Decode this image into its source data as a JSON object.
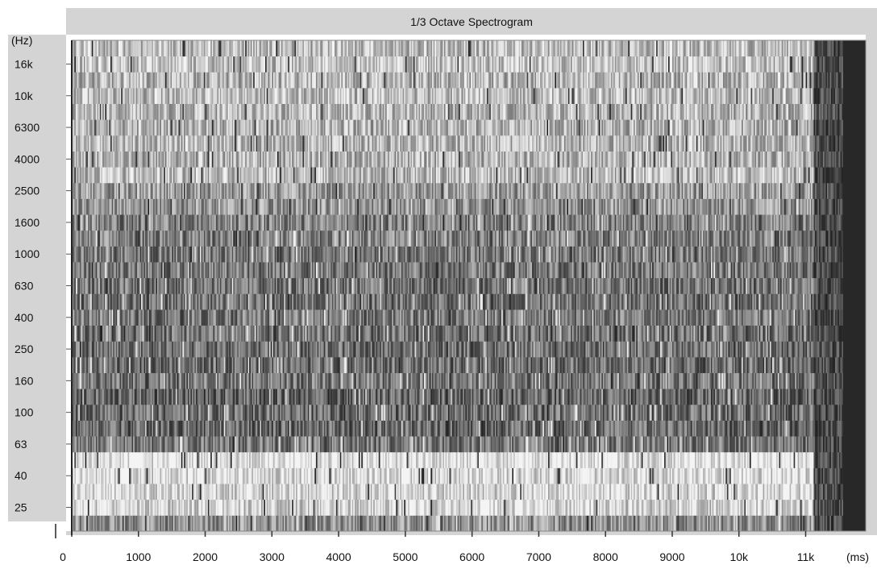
{
  "chart_data": {
    "type": "heatmap",
    "title": "1/3 Octave Spectrogram",
    "y_unit_label": "(Hz)",
    "x_unit_label": "(ms)",
    "y_axis": {
      "bands": [
        20,
        25,
        31.5,
        40,
        50,
        63,
        80,
        100,
        125,
        160,
        200,
        250,
        315,
        400,
        500,
        630,
        800,
        1000,
        1250,
        1600,
        2000,
        2500,
        3150,
        4000,
        5000,
        6300,
        8000,
        10000,
        12500,
        16000,
        20000
      ],
      "tick_labels": [
        "16k",
        "10k",
        "6300",
        "4000",
        "2500",
        "1600",
        "1000",
        "630",
        "400",
        "250",
        "160",
        "100",
        "63",
        "40",
        "25"
      ],
      "tick_values": [
        16000,
        10000,
        6300,
        4000,
        2500,
        1600,
        1000,
        630,
        400,
        250,
        160,
        100,
        63,
        40,
        25
      ],
      "scale": "log (1/3 octave bands)"
    },
    "x_axis": {
      "tick_labels": [
        "0",
        "1000",
        "2000",
        "3000",
        "4000",
        "5000",
        "6000",
        "7000",
        "8000",
        "9000",
        "10k",
        "11k"
      ],
      "tick_values": [
        0,
        1000,
        2000,
        3000,
        4000,
        5000,
        6000,
        7000,
        8000,
        9000,
        10000,
        11000
      ],
      "range": [
        0,
        11900
      ]
    },
    "colormap": "grayscale (light = low level, dark = high level)",
    "colors": {
      "panel": "#d4d4d4",
      "low": "#f2f2f2",
      "high": "#1a1a1a",
      "tail": "#1e1e1e"
    },
    "signal_end_ms": 11400,
    "approx_band_darkness": [
      {
        "band_hz": 20,
        "darkness": 0.45
      },
      {
        "band_hz": 25,
        "darkness": 0.15
      },
      {
        "band_hz": 31.5,
        "darkness": 0.12
      },
      {
        "band_hz": 40,
        "darkness": 0.1
      },
      {
        "band_hz": 50,
        "darkness": 0.05
      },
      {
        "band_hz": 63,
        "darkness": 0.55
      },
      {
        "band_hz": 80,
        "darkness": 0.62
      },
      {
        "band_hz": 100,
        "darkness": 0.6
      },
      {
        "band_hz": 125,
        "darkness": 0.65
      },
      {
        "band_hz": 160,
        "darkness": 0.55
      },
      {
        "band_hz": 200,
        "darkness": 0.6
      },
      {
        "band_hz": 250,
        "darkness": 0.6
      },
      {
        "band_hz": 315,
        "darkness": 0.58
      },
      {
        "band_hz": 400,
        "darkness": 0.55
      },
      {
        "band_hz": 500,
        "darkness": 0.6
      },
      {
        "band_hz": 630,
        "darkness": 0.58
      },
      {
        "band_hz": 800,
        "darkness": 0.55
      },
      {
        "band_hz": 1000,
        "darkness": 0.55
      },
      {
        "band_hz": 1250,
        "darkness": 0.5
      },
      {
        "band_hz": 1600,
        "darkness": 0.52
      },
      {
        "band_hz": 2000,
        "darkness": 0.42
      },
      {
        "band_hz": 2500,
        "darkness": 0.4
      },
      {
        "band_hz": 3150,
        "darkness": 0.25
      },
      {
        "band_hz": 4000,
        "darkness": 0.3
      },
      {
        "band_hz": 5000,
        "darkness": 0.28
      },
      {
        "band_hz": 6300,
        "darkness": 0.3
      },
      {
        "band_hz": 8000,
        "darkness": 0.28
      },
      {
        "band_hz": 10000,
        "darkness": 0.25
      },
      {
        "band_hz": 12500,
        "darkness": 0.28
      },
      {
        "band_hz": 16000,
        "darkness": 0.22
      },
      {
        "band_hz": 20000,
        "darkness": 0.25
      }
    ]
  }
}
